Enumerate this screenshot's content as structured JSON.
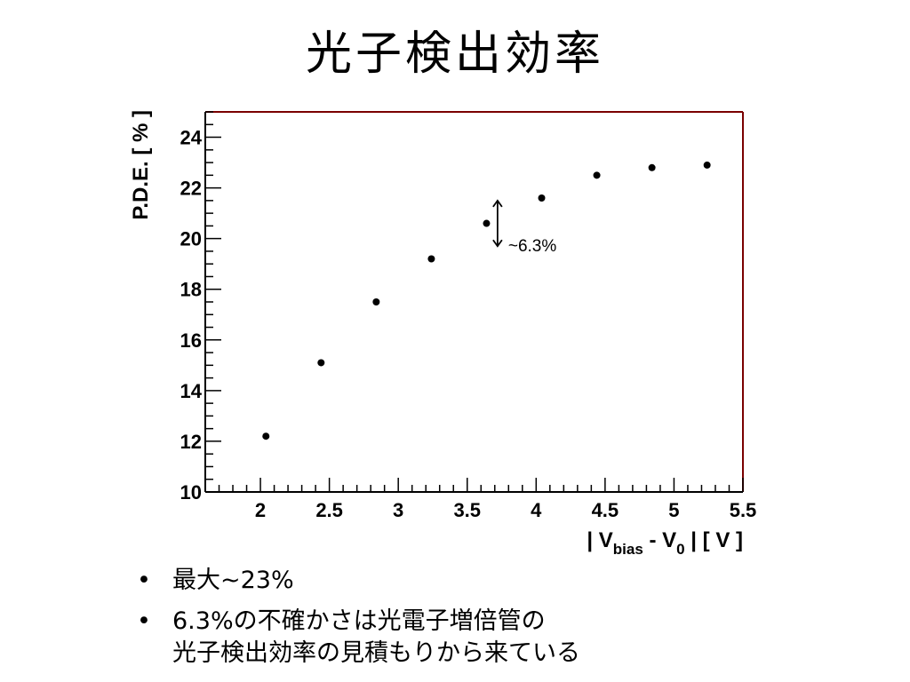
{
  "title": "光子検出効率",
  "chart_data": {
    "type": "scatter",
    "title": "",
    "xlabel_parts": [
      "| V",
      "bias",
      " - V",
      "0",
      " |  [ V ]"
    ],
    "ylabel": "P.D.E.  [ % ]",
    "xlim": [
      1.6,
      5.5
    ],
    "ylim": [
      10,
      25
    ],
    "x_ticks": [
      2,
      2.5,
      3,
      3.5,
      4,
      4.5,
      5,
      5.5
    ],
    "x_tick_labels": [
      "2",
      "2.5",
      "3",
      "3.5",
      "4",
      "4.5",
      "5",
      "5.5"
    ],
    "y_ticks": [
      10,
      12,
      14,
      16,
      18,
      20,
      22,
      24
    ],
    "y_tick_labels": [
      "10",
      "12",
      "14",
      "16",
      "18",
      "20",
      "22",
      "24"
    ],
    "grid": false,
    "series": [
      {
        "x": [
          2.04,
          2.44,
          2.84,
          3.24,
          3.64,
          4.04,
          4.44,
          4.84,
          5.24
        ],
        "y": [
          12.2,
          15.1,
          17.5,
          19.2,
          20.6,
          21.6,
          22.5,
          22.8,
          22.9
        ]
      }
    ],
    "annotation": {
      "text": "~6.3%",
      "x": 3.72,
      "y_low": 19.7,
      "y_high": 21.5
    }
  },
  "bullets": [
    {
      "marker": "•",
      "lines": [
        "最大~23%"
      ]
    },
    {
      "marker": "•",
      "lines": [
        "6.3%の不確かさは光電子増倍管の",
        "光子検出効率の見積もりから来ている"
      ]
    }
  ]
}
